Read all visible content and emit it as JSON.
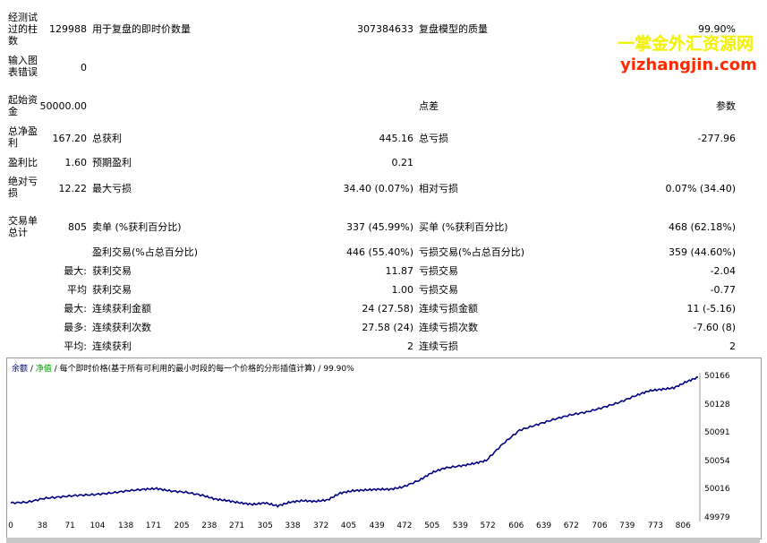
{
  "watermark": {
    "line1": "一掌金外汇资源网",
    "line2": "yizhangjin.com"
  },
  "stats": {
    "bars_tested_label": "经测试过的柱数",
    "bars_tested_value": "129988",
    "ticks_label": "用于复盘的即时价数量",
    "ticks_value": "307384633",
    "quality_label": "复盘模型的质量",
    "quality_value": "99.90%",
    "mismatch_label": "输入图表错误",
    "mismatch_value": "0",
    "deposit_label": "起始资金",
    "deposit_value": "50000.00",
    "spread_label": "点差",
    "spread_value": "参数",
    "net_profit_label": "总净盈利",
    "net_profit_value": "167.20",
    "gross_profit_label": "总获利",
    "gross_profit_value": "445.16",
    "gross_loss_label": "总亏损",
    "gross_loss_value": "-277.96",
    "profit_factor_label": "盈利比",
    "profit_factor_value": "1.60",
    "expected_payoff_label": "预期盈利",
    "expected_payoff_value": "0.21",
    "abs_dd_label": "绝对亏损",
    "abs_dd_value": "12.22",
    "max_dd_label": "最大亏损",
    "max_dd_value": "34.40 (0.07%)",
    "rel_dd_label": "相对亏损",
    "rel_dd_value": "0.07% (34.40)",
    "total_trades_label": "交易单总计",
    "total_trades_value": "805",
    "short_label": "卖单 (%获利百分比)",
    "short_value": "337 (45.99%)",
    "long_label": "买单 (%获利百分比)",
    "long_value": "468 (62.18%)",
    "profit_trades_label": "盈利交易(%占总百分比)",
    "profit_trades_value": "446 (55.40%)",
    "loss_trades_label": "亏损交易(%占总百分比)",
    "loss_trades_value": "359 (44.60%)",
    "largest_prefix": "最大:",
    "largest_profit_label": "获利交易",
    "largest_profit_value": "11.87",
    "largest_loss_label": "亏损交易",
    "largest_loss_value": "-2.04",
    "average_prefix": "平均",
    "average_profit_label": "获利交易",
    "average_profit_value": "1.00",
    "average_loss_label": "亏损交易",
    "average_loss_value": "-0.77",
    "max_prefix": "最大:",
    "max_consec_wins_label": "连续获利金额",
    "max_consec_wins_value": "24 (27.58)",
    "max_consec_losses_label": "连续亏损金额",
    "max_consec_losses_value": "11 (-5.16)",
    "maximal_prefix": "最多:",
    "maximal_consec_profit_label": "连续获利次数",
    "maximal_consec_profit_value": "27.58 (24)",
    "maximal_consec_loss_label": "连续亏损次数",
    "maximal_consec_loss_value": "-7.60 (8)",
    "avg_prefix": "平均:",
    "avg_consec_wins_label": "连续获利",
    "avg_consec_wins_value": "2",
    "avg_consec_losses_label": "连续亏损",
    "avg_consec_losses_value": "2"
  },
  "chart_legend": {
    "balance": "余额",
    "sep1": " / ",
    "equity": "净值",
    "sep2": " / ",
    "model": "每个即时价格(基于所有可利用的最小时段的每一个价格的分形插值计算)",
    "sep3": " / ",
    "quality": "99.90%"
  },
  "chart_data": {
    "type": "line",
    "x_ticks": [
      "0",
      "38",
      "71",
      "104",
      "138",
      "171",
      "205",
      "238",
      "271",
      "305",
      "338",
      "372",
      "405",
      "439",
      "472",
      "505",
      "539",
      "572",
      "606",
      "639",
      "672",
      "706",
      "739",
      "773",
      "806"
    ],
    "y_ticks": [
      "50166",
      "50128",
      "50091",
      "50054",
      "50016",
      "49979"
    ],
    "ylim": [
      49979,
      50166
    ],
    "xlim": [
      0,
      824
    ],
    "series": [
      {
        "color": "#000080",
        "points": [
          [
            0,
            50000
          ],
          [
            20,
            50001
          ],
          [
            40,
            50006
          ],
          [
            60,
            50008
          ],
          [
            80,
            50010
          ],
          [
            100,
            50011
          ],
          [
            120,
            50013
          ],
          [
            140,
            50016
          ],
          [
            160,
            50018
          ],
          [
            175,
            50019
          ],
          [
            190,
            50016
          ],
          [
            210,
            50014
          ],
          [
            230,
            50010
          ],
          [
            245,
            50005
          ],
          [
            260,
            50003
          ],
          [
            275,
            50000
          ],
          [
            290,
            49998
          ],
          [
            305,
            50000
          ],
          [
            320,
            49996
          ],
          [
            335,
            50001
          ],
          [
            350,
            50003
          ],
          [
            365,
            50002
          ],
          [
            380,
            50004
          ],
          [
            395,
            50013
          ],
          [
            410,
            50016
          ],
          [
            425,
            50017
          ],
          [
            440,
            50018
          ],
          [
            455,
            50018
          ],
          [
            470,
            50021
          ],
          [
            490,
            50030
          ],
          [
            505,
            50040
          ],
          [
            520,
            50046
          ],
          [
            540,
            50049
          ],
          [
            555,
            50052
          ],
          [
            570,
            50056
          ],
          [
            590,
            50078
          ],
          [
            610,
            50096
          ],
          [
            630,
            50103
          ],
          [
            650,
            50110
          ],
          [
            670,
            50116
          ],
          [
            690,
            50120
          ],
          [
            710,
            50126
          ],
          [
            730,
            50133
          ],
          [
            750,
            50142
          ],
          [
            765,
            50148
          ],
          [
            780,
            50150
          ],
          [
            795,
            50152
          ],
          [
            810,
            50160
          ],
          [
            824,
            50166
          ]
        ]
      }
    ]
  }
}
